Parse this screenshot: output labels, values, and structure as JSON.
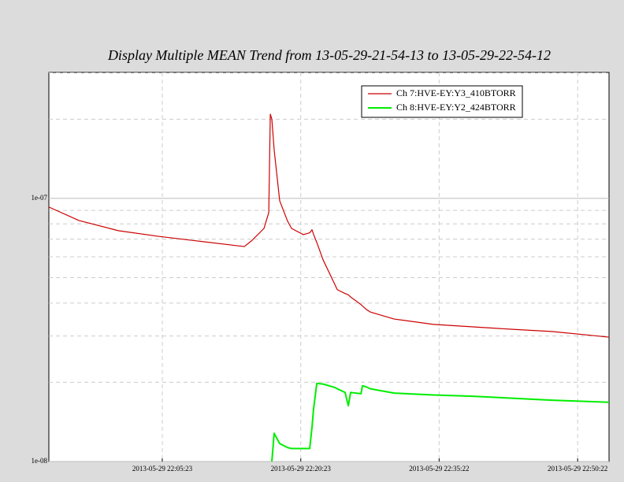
{
  "chart_data": {
    "type": "line",
    "title": "Display Multiple MEAN Trend from 13-05-29-21-54-13 to 13-05-29-22-54-12",
    "x": [
      "2013-05-29 21:53:06",
      "2013-05-29 21:56:21",
      "2013-05-29 22:00:37",
      "2013-05-29 22:04:53",
      "2013-05-29 22:09:09",
      "2013-05-29 22:14:16",
      "2013-05-29 22:15:07",
      "2013-05-29 22:16:24",
      "2013-05-29 22:16:55",
      "2013-05-29 22:17:05",
      "2013-05-29 22:17:15",
      "2013-05-29 22:17:30",
      "2013-05-29 22:18:06",
      "2013-05-29 22:18:57",
      "2013-05-29 22:19:23",
      "2013-05-29 22:20:40",
      "2013-05-29 22:21:21",
      "2013-05-29 22:21:36",
      "2013-05-29 22:21:46",
      "2013-05-29 22:22:07",
      "2013-05-29 22:22:48",
      "2013-05-29 22:24:05",
      "2013-05-29 22:24:20",
      "2013-05-29 22:25:11",
      "2013-05-29 22:25:32",
      "2013-05-29 22:25:47",
      "2013-05-29 22:26:54",
      "2013-05-29 22:27:04",
      "2013-05-29 22:27:30",
      "2013-05-29 22:27:55",
      "2013-05-29 22:30:29",
      "2013-05-29 22:34:45",
      "2013-05-29 22:39:01",
      "2013-05-29 22:43:17",
      "2013-05-29 22:47:33",
      "2013-05-29 22:53:46"
    ],
    "series": [
      {
        "name": "Ch 7:HVE-EY:Y3_410BTORR",
        "color": "#cc0000",
        "values": [
          9.27e-08,
          8.24e-08,
          7.54e-08,
          7.18e-08,
          6.89e-08,
          6.56e-08,
          6.93e-08,
          7.69e-08,
          8.84e-08,
          2.09e-07,
          2e-07,
          1.53e-07,
          9.79e-08,
          8.2e-08,
          7.69e-08,
          7.28e-08,
          7.4e-08,
          7.6e-08,
          7.3e-08,
          6.8e-08,
          5.84e-08,
          4.7e-08,
          4.5e-08,
          4.35e-08,
          4.3e-08,
          4.22e-08,
          3.95e-08,
          3.9e-08,
          3.78e-08,
          3.7e-08,
          3.48e-08,
          3.32e-08,
          3.25e-08,
          3.18e-08,
          3.12e-08,
          2.97e-08
        ]
      },
      {
        "name": "Ch 8:HVE-EY:Y2_424BTORR",
        "color": "#00ee00",
        "values": [
          null,
          null,
          null,
          null,
          null,
          null,
          null,
          null,
          null,
          null,
          1e-08,
          1.28e-08,
          1.17e-08,
          1.13e-08,
          1.12e-08,
          1.12e-08,
          1.12e-08,
          1.35e-08,
          1.58e-08,
          1.98e-08,
          1.97e-08,
          1.91e-08,
          1.89e-08,
          1.83e-08,
          1.63e-08,
          1.83e-08,
          1.81e-08,
          1.94e-08,
          1.92e-08,
          1.89e-08,
          1.82e-08,
          1.79e-08,
          1.77e-08,
          1.74e-08,
          1.71e-08,
          1.68e-08
        ]
      }
    ],
    "xlim": [
      "2013-05-29 21:53:06",
      "2013-05-29 22:53:46"
    ],
    "xticks": [
      "2013-05-29 22:05:23",
      "2013-05-29 22:20:23",
      "2013-05-29 22:35:22",
      "2013-05-29 22:50:22"
    ],
    "ylim": [
      1e-08,
      3.01e-07
    ],
    "yticks": [
      {
        "value": 1e-08,
        "label": "1e-08"
      },
      {
        "value": 1e-07,
        "label": "1e-07"
      }
    ],
    "log_y": true,
    "grid": true,
    "legend": "upper right"
  }
}
